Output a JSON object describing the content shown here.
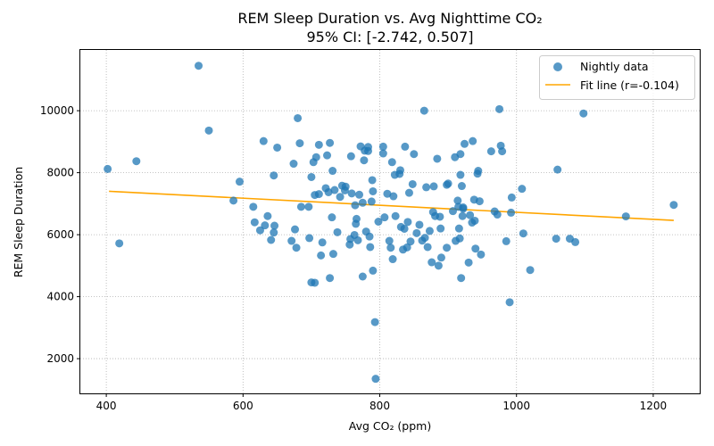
{
  "chart_data": {
    "type": "scatter",
    "title": "REM Sleep Duration vs. Avg Nighttime CO₂",
    "subtitle": "95% CI: [-2.742, 0.507]",
    "xlabel": "Avg CO₂ (ppm)",
    "ylabel": "REM Sleep Duration",
    "xlim": [
      362,
      1268
    ],
    "ylim": [
      880,
      11960
    ],
    "xticks": [
      400,
      600,
      800,
      1000,
      1200
    ],
    "yticks": [
      2000,
      4000,
      6000,
      8000,
      10000
    ],
    "grid": true,
    "legend_position": "top-right",
    "colors": {
      "points": "#1f77b4",
      "fit": "#ffa500"
    },
    "series": [
      {
        "name": "Nightly data",
        "points": [
          [
            402,
            8120
          ],
          [
            419,
            5720
          ],
          [
            444,
            8370
          ],
          [
            535,
            11450
          ],
          [
            550,
            9360
          ],
          [
            586,
            7100
          ],
          [
            595,
            7710
          ],
          [
            615,
            6900
          ],
          [
            617,
            6400
          ],
          [
            625,
            6140
          ],
          [
            630,
            9020
          ],
          [
            632,
            6300
          ],
          [
            636,
            6600
          ],
          [
            641,
            5830
          ],
          [
            645,
            6070
          ],
          [
            646,
            6290
          ],
          [
            645,
            7910
          ],
          [
            650,
            8810
          ],
          [
            671,
            5800
          ],
          [
            674,
            8290
          ],
          [
            676,
            6170
          ],
          [
            678,
            5580
          ],
          [
            680,
            9760
          ],
          [
            683,
            8950
          ],
          [
            685,
            6900
          ],
          [
            696,
            6900
          ],
          [
            697,
            5890
          ],
          [
            700,
            4460
          ],
          [
            700,
            7860
          ],
          [
            703,
            8340
          ],
          [
            705,
            4450
          ],
          [
            705,
            7280
          ],
          [
            707,
            8500
          ],
          [
            711,
            7310
          ],
          [
            711,
            8900
          ],
          [
            714,
            5330
          ],
          [
            716,
            5750
          ],
          [
            721,
            7500
          ],
          [
            723,
            8560
          ],
          [
            725,
            7370
          ],
          [
            727,
            8960
          ],
          [
            727,
            4600
          ],
          [
            730,
            6560
          ],
          [
            731,
            8060
          ],
          [
            732,
            5380
          ],
          [
            734,
            7440
          ],
          [
            738,
            6080
          ],
          [
            742,
            7220
          ],
          [
            745,
            7580
          ],
          [
            749,
            7430
          ],
          [
            750,
            7550
          ],
          [
            756,
            5680
          ],
          [
            757,
            5860
          ],
          [
            758,
            8530
          ],
          [
            759,
            7330
          ],
          [
            763,
            5990
          ],
          [
            764,
            6950
          ],
          [
            765,
            6350
          ],
          [
            766,
            6510
          ],
          [
            768,
            5820
          ],
          [
            770,
            7290
          ],
          [
            772,
            8850
          ],
          [
            775,
            7030
          ],
          [
            775,
            4650
          ],
          [
            777,
            8400
          ],
          [
            778,
            8710
          ],
          [
            780,
            6100
          ],
          [
            783,
            8830
          ],
          [
            783,
            8700
          ],
          [
            785,
            5940
          ],
          [
            786,
            5600
          ],
          [
            788,
            7070
          ],
          [
            789,
            7760
          ],
          [
            790,
            7400
          ],
          [
            790,
            4840
          ],
          [
            793,
            3180
          ],
          [
            794,
            1350
          ],
          [
            798,
            6420
          ],
          [
            805,
            8620
          ],
          [
            805,
            8840
          ],
          [
            807,
            6560
          ],
          [
            811,
            7320
          ],
          [
            814,
            5800
          ],
          [
            816,
            5580
          ],
          [
            818,
            8340
          ],
          [
            819,
            5210
          ],
          [
            820,
            7240
          ],
          [
            822,
            7930
          ],
          [
            823,
            6600
          ],
          [
            829,
            7960
          ],
          [
            830,
            8080
          ],
          [
            831,
            6250
          ],
          [
            834,
            5520
          ],
          [
            836,
            6190
          ],
          [
            837,
            8840
          ],
          [
            840,
            5590
          ],
          [
            841,
            6410
          ],
          [
            843,
            7350
          ],
          [
            845,
            5780
          ],
          [
            848,
            7630
          ],
          [
            850,
            8600
          ],
          [
            854,
            6050
          ],
          [
            858,
            6320
          ],
          [
            862,
            5810
          ],
          [
            865,
            10000
          ],
          [
            866,
            5900
          ],
          [
            868,
            7530
          ],
          [
            870,
            5600
          ],
          [
            873,
            6120
          ],
          [
            876,
            5110
          ],
          [
            878,
            6730
          ],
          [
            879,
            7560
          ],
          [
            881,
            6600
          ],
          [
            884,
            8450
          ],
          [
            886,
            5000
          ],
          [
            888,
            6580
          ],
          [
            889,
            6200
          ],
          [
            890,
            5260
          ],
          [
            898,
            7610
          ],
          [
            898,
            5580
          ],
          [
            900,
            7650
          ],
          [
            907,
            6760
          ],
          [
            910,
            8500
          ],
          [
            911,
            5800
          ],
          [
            914,
            7100
          ],
          [
            915,
            6900
          ],
          [
            916,
            6200
          ],
          [
            917,
            5880
          ],
          [
            918,
            8600
          ],
          [
            918,
            7930
          ],
          [
            919,
            4600
          ],
          [
            920,
            7570
          ],
          [
            921,
            6600
          ],
          [
            922,
            6840
          ],
          [
            922,
            6880
          ],
          [
            924,
            8930
          ],
          [
            930,
            5100
          ],
          [
            932,
            6630
          ],
          [
            935,
            6390
          ],
          [
            936,
            9020
          ],
          [
            938,
            7130
          ],
          [
            939,
            6450
          ],
          [
            940,
            5550
          ],
          [
            943,
            7970
          ],
          [
            944,
            8060
          ],
          [
            946,
            7080
          ],
          [
            948,
            5360
          ],
          [
            963,
            8690
          ],
          [
            968,
            6750
          ],
          [
            972,
            6650
          ],
          [
            975,
            10050
          ],
          [
            977,
            8870
          ],
          [
            979,
            8690
          ],
          [
            985,
            5790
          ],
          [
            990,
            3820
          ],
          [
            992,
            6710
          ],
          [
            993,
            7200
          ],
          [
            1008,
            7480
          ],
          [
            1010,
            6040
          ],
          [
            1020,
            4860
          ],
          [
            1058,
            5870
          ],
          [
            1060,
            8100
          ],
          [
            1078,
            5870
          ],
          [
            1086,
            5760
          ],
          [
            1098,
            9910
          ],
          [
            1160,
            6590
          ],
          [
            1230,
            6960
          ]
        ]
      },
      {
        "name": "Fit line (r=-0.104)",
        "line": [
          [
            404,
            7400
          ],
          [
            1230,
            6460
          ]
        ]
      }
    ]
  }
}
